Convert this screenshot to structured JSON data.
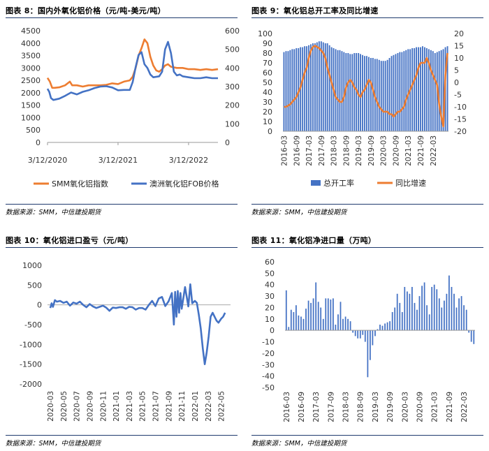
{
  "source_label": "数据来源：SMM，中信建投期货",
  "chart_data": [
    {
      "id": "fig8",
      "title": "图表 8：国内外氧化铝价格（元/吨-美元/吨）",
      "type": "line",
      "x_ticks": [
        "3/12/2020",
        "3/12/2021",
        "3/12/2022"
      ],
      "y_left_ticks": [
        "4500",
        "4000",
        "3500",
        "3000",
        "2500",
        "2000",
        "1500",
        "1000",
        "500",
        "0"
      ],
      "y_right_ticks": [
        "600",
        "500",
        "400",
        "300",
        "200",
        "100",
        "0"
      ],
      "ylim_left": [
        0,
        4500
      ],
      "ylim_right": [
        0,
        600
      ],
      "x_range": [
        0,
        29
      ],
      "series": [
        {
          "name": "SMM氧化铝指数",
          "axis": "left",
          "color": "#ed7d31",
          "x": [
            0,
            0.4,
            0.8,
            1.2,
            2,
            3,
            3.8,
            4.2,
            5,
            6,
            7,
            8,
            9,
            10,
            11,
            12,
            13,
            14,
            14.5,
            15,
            15.5,
            16,
            16.5,
            17,
            17.5,
            18,
            18.5,
            19,
            19.5,
            20,
            20.5,
            21,
            22,
            23,
            24,
            25,
            26,
            27,
            28,
            29
          ],
          "y": [
            2600,
            2450,
            2200,
            2200,
            2220,
            2300,
            2450,
            2300,
            2300,
            2250,
            2300,
            2300,
            2300,
            2320,
            2380,
            2350,
            2450,
            2500,
            2650,
            3000,
            3500,
            3800,
            4150,
            4000,
            3450,
            3100,
            2900,
            2850,
            2950,
            3100,
            3150,
            3050,
            3000,
            3000,
            2950,
            2950,
            2920,
            2950,
            2920,
            2950
          ]
        },
        {
          "name": "澳洲氧化铝FOB价格",
          "axis": "right",
          "color": "#4472c4",
          "x": [
            0,
            0.3,
            0.6,
            1.0,
            2,
            3,
            4,
            5,
            6,
            7,
            8,
            9,
            10,
            11,
            12,
            13,
            14,
            14.5,
            15,
            15.5,
            16,
            16.5,
            17,
            17.5,
            18,
            19,
            19.5,
            20,
            20.5,
            21,
            21.5,
            22,
            22.5,
            23,
            24,
            25,
            26,
            27,
            28,
            29
          ],
          "y": [
            288,
            272,
            238,
            228,
            235,
            250,
            268,
            258,
            272,
            280,
            292,
            300,
            302,
            295,
            280,
            282,
            282,
            325,
            405,
            470,
            485,
            420,
            400,
            365,
            350,
            355,
            380,
            500,
            540,
            480,
            380,
            360,
            365,
            355,
            350,
            345,
            345,
            350,
            345,
            345
          ]
        }
      ]
    },
    {
      "id": "fig9",
      "title": "图表 9：氧化铝总开工率及同比增速",
      "type": "bar+line",
      "y_left_ticks": [
        "100",
        "90",
        "80",
        "70",
        "60",
        "50",
        "40",
        "30",
        "20",
        "10",
        "0"
      ],
      "y_right_ticks": [
        "20",
        "15",
        "10",
        "5",
        "0",
        "-5",
        "-10",
        "-15",
        "-20"
      ],
      "ylim_left": [
        0,
        100
      ],
      "ylim_right": [
        -20,
        20
      ],
      "x_ticks": [
        "2016-03",
        "2016-09",
        "2017-03",
        "2017-09",
        "2018-03",
        "2018-09",
        "2019-03",
        "2019-09",
        "2020-03",
        "2020-09",
        "2021-03",
        "2021-09",
        "2022-03"
      ],
      "series": [
        {
          "name": "总开工率",
          "axis": "left",
          "color": "#4472c4",
          "values": [
            81,
            82,
            82,
            83,
            84,
            84,
            85,
            85,
            86,
            86,
            87,
            87,
            88,
            89,
            90,
            90,
            91,
            92,
            92,
            91,
            90,
            90,
            88,
            86,
            85,
            84,
            83,
            83,
            82,
            81,
            80,
            80,
            79,
            79,
            80,
            80,
            80,
            79,
            78,
            77,
            77,
            76,
            75,
            75,
            74,
            74,
            73,
            72,
            72,
            72,
            73,
            75,
            77,
            78,
            79,
            80,
            81,
            81,
            82,
            83,
            84,
            84,
            85,
            85,
            86,
            86,
            86,
            87,
            86,
            85,
            84,
            83,
            82,
            80,
            81,
            82,
            83,
            84,
            86,
            87
          ]
        },
        {
          "name": "同比增速",
          "axis": "right",
          "color": "#ed7d31",
          "values": [
            -10,
            -10,
            -9.5,
            -9,
            -8,
            -7,
            -6,
            -4,
            -2,
            1,
            4,
            6,
            10,
            13,
            14.5,
            15,
            14.5,
            14,
            13,
            12,
            10,
            6,
            3,
            0,
            -3,
            -6,
            -7,
            -8,
            -8,
            -6,
            -2,
            0,
            1,
            0,
            -2,
            -3,
            -5,
            -6,
            -4,
            -3,
            -1,
            1,
            0,
            -3,
            -6,
            -8,
            -10,
            -11,
            -12,
            -12,
            -12,
            -13,
            -13,
            -14,
            -13,
            -12,
            -12,
            -11,
            -10,
            -7,
            -5,
            -3,
            -1,
            1,
            3,
            6,
            8,
            8,
            8,
            10,
            8,
            5,
            3,
            1,
            -1,
            -9,
            -14,
            -18,
            3,
            12
          ]
        }
      ]
    },
    {
      "id": "fig10",
      "title": "图表 10：氧化铝进口盈亏（元/吨）",
      "type": "line",
      "y_ticks": [
        "1000",
        "500",
        "0",
        "-500",
        "-1000",
        "-1500",
        "-2000"
      ],
      "ylim": [
        -2000,
        1000
      ],
      "x_ticks": [
        "2020-03",
        "2020-05",
        "2020-07",
        "2020-09",
        "2020-11",
        "2021-01",
        "2021-03",
        "2021-05",
        "2021-07",
        "2021-09",
        "2021-11",
        "2022-01",
        "2022-03",
        "2022-05"
      ],
      "series": [
        {
          "name": "进口盈亏",
          "color": "#4472c4",
          "x": [
            0,
            0.2,
            0.4,
            0.7,
            1.0,
            1.5,
            2,
            2.5,
            3,
            3.5,
            4,
            4.5,
            5,
            5.5,
            6,
            6.5,
            7,
            7.5,
            8,
            8.5,
            9,
            9.5,
            10,
            10.5,
            11,
            11.5,
            12,
            12.5,
            13,
            13.5,
            14,
            14.5,
            15,
            15.5,
            16,
            16.5,
            17,
            17.5,
            18,
            18.5,
            18.8,
            19,
            19.2,
            19.4,
            19.6,
            19.8,
            20,
            20.5,
            21,
            21.3,
            21.6,
            22,
            22.3,
            22.6,
            22.9,
            23.2,
            23.5,
            23.8,
            24.1,
            24.4,
            24.7,
            25,
            25.3,
            25.6,
            26,
            26.3,
            26.6
          ],
          "y": [
            -80,
            40,
            -50,
            120,
            80,
            100,
            50,
            80,
            -20,
            60,
            30,
            80,
            0,
            -60,
            20,
            -40,
            -80,
            -50,
            -20,
            -70,
            -150,
            -70,
            -80,
            -60,
            -60,
            -100,
            -50,
            -60,
            -120,
            -80,
            -80,
            -120,
            0,
            100,
            -30,
            160,
            200,
            -30,
            90,
            300,
            -500,
            330,
            -300,
            350,
            -200,
            300,
            -100,
            450,
            -40,
            520,
            40,
            100,
            50,
            -250,
            -600,
            -1100,
            -1500,
            -1200,
            -800,
            -300,
            -200,
            -300,
            -400,
            -450,
            -350,
            -300,
            -200
          ]
        }
      ]
    },
    {
      "id": "fig11",
      "title": "图表 11：氧化铝净进口量（万吨）",
      "type": "bar",
      "y_ticks": [
        "60",
        "50",
        "40",
        "30",
        "20",
        "10",
        "0",
        "-10",
        "-20",
        "-30",
        "-40",
        "-50"
      ],
      "ylim": [
        -50,
        60
      ],
      "x_ticks": [
        "2016-03",
        "2016-09",
        "2017-03",
        "2017-09",
        "2018-03",
        "2018-09",
        "2019-03",
        "2019-09",
        "2020-03",
        "2020-09",
        "2021-03",
        "2021-09",
        "2022-03"
      ],
      "series": [
        {
          "name": "净进口量",
          "color": "#4472c4",
          "values": [
            35,
            3,
            18,
            16,
            22,
            13,
            12,
            10,
            19,
            26,
            24,
            28,
            42,
            25,
            20,
            10,
            28,
            28,
            27,
            28,
            5,
            14,
            25,
            10,
            12,
            10,
            8,
            -2,
            -5,
            -7,
            -7,
            -4,
            -10,
            -41,
            -26,
            -13,
            -5,
            1,
            5,
            4,
            6,
            7,
            8,
            16,
            20,
            32,
            24,
            16,
            38,
            34,
            32,
            38,
            24,
            18,
            30,
            39,
            42,
            22,
            14,
            38,
            40,
            36,
            28,
            20,
            26,
            32,
            48,
            38,
            32,
            20,
            28,
            30,
            22,
            18,
            -2,
            -10,
            -12
          ]
        }
      ]
    }
  ]
}
